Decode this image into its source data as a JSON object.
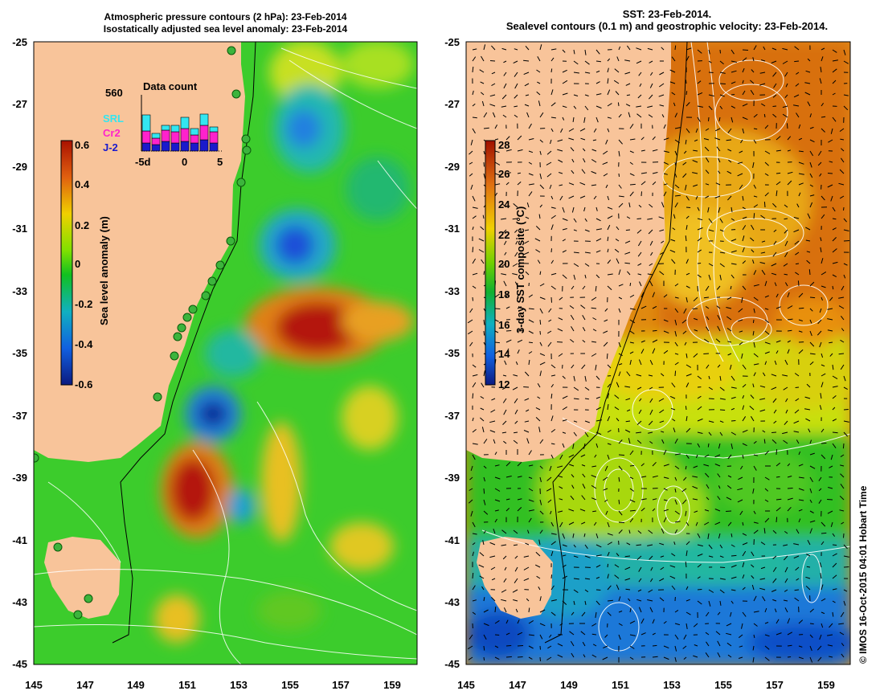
{
  "left_panel": {
    "title_line1": "Atmospheric pressure contours (2 hPa): 23-Feb-2014",
    "title_line2": "Isostatically adjusted sea level anomaly: 23-Feb-2014",
    "colorbar": {
      "label": "Sea level anomaly (m)",
      "ticks": [
        "0.6",
        "0.4",
        "0.2",
        "0",
        "-0.2",
        "-0.4",
        "-0.6"
      ]
    },
    "data_count": {
      "title": "Data count",
      "max_label": "560",
      "x_ticks": [
        "-5d",
        "0",
        "5"
      ],
      "legend": [
        {
          "label": "SRL",
          "color": "#33e6f0"
        },
        {
          "label": "Cr2",
          "color": "#ff22cc"
        },
        {
          "label": "J-2",
          "color": "#1a1acc"
        }
      ]
    }
  },
  "right_panel": {
    "title_line1": "SST: 23-Feb-2014.",
    "title_line2": "Sealevel contours (0.1 m) and geostrophic velocity: 23-Feb-2014.",
    "colorbar": {
      "label": "3-day SST composite (°C)",
      "ticks": [
        "28",
        "26",
        "24",
        "22",
        "20",
        "18",
        "16",
        "14",
        "12"
      ]
    }
  },
  "axes": {
    "lat_ticks": [
      "-25",
      "-27",
      "-29",
      "-31",
      "-33",
      "-35",
      "-37",
      "-39",
      "-41",
      "-43",
      "-45"
    ],
    "lon_ticks": [
      "145",
      "147",
      "149",
      "151",
      "153",
      "155",
      "157",
      "159"
    ]
  },
  "copyright": "© IMOS 16-Oct-2015 04:01 Hobart Time",
  "colors": {
    "land": "#f8c49a",
    "sla_high": "#aa1100",
    "sla_low": "#102aa8",
    "sst_warm": "#e07a10",
    "sst_cool": "#1c74d8"
  }
}
